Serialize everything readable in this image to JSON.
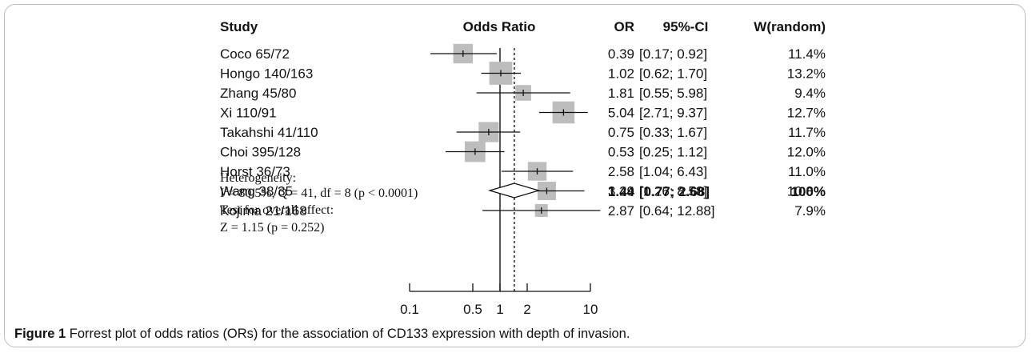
{
  "chart_data": {
    "type": "forest",
    "headers": {
      "study": "Study",
      "plot": "Odds Ratio",
      "or": "OR",
      "ci": "95%-CI",
      "weight": "W(random)"
    },
    "studies": [
      {
        "label": "Coco 65/72",
        "or": 0.39,
        "lo": 0.17,
        "hi": 0.92,
        "or_text": "0.39",
        "ci_text": "[0.17; 0.92]",
        "weight_text": "11.4%",
        "weight": 11.4
      },
      {
        "label": "Hongo 140/163",
        "or": 1.02,
        "lo": 0.62,
        "hi": 1.7,
        "or_text": "1.02",
        "ci_text": "[0.62; 1.70]",
        "weight_text": "13.2%",
        "weight": 13.2
      },
      {
        "label": "Zhang 45/80",
        "or": 1.81,
        "lo": 0.55,
        "hi": 5.98,
        "or_text": "1.81",
        "ci_text": "[0.55; 5.98]",
        "weight_text": "9.4%",
        "weight": 9.4
      },
      {
        "label": "Xi 110/91",
        "or": 5.04,
        "lo": 2.71,
        "hi": 9.37,
        "or_text": "5.04",
        "ci_text": "[2.71; 9.37]",
        "weight_text": "12.7%",
        "weight": 12.7
      },
      {
        "label": "Takahshi 41/110",
        "or": 0.75,
        "lo": 0.33,
        "hi": 1.67,
        "or_text": "0.75",
        "ci_text": "[0.33; 1.67]",
        "weight_text": "11.7%",
        "weight": 11.7
      },
      {
        "label": "Choi 395/128",
        "or": 0.53,
        "lo": 0.25,
        "hi": 1.12,
        "or_text": "0.53",
        "ci_text": "[0.25; 1.12]",
        "weight_text": "12.0%",
        "weight": 12.0
      },
      {
        "label": "Horst 36/73",
        "or": 2.58,
        "lo": 1.04,
        "hi": 6.43,
        "or_text": "2.58",
        "ci_text": "[1.04; 6.43]",
        "weight_text": "11.0%",
        "weight": 11.0
      },
      {
        "label": "Wang 38/35",
        "or": 3.29,
        "lo": 1.26,
        "hi": 8.58,
        "or_text": "3.29",
        "ci_text": "[1.26; 8.58]",
        "weight_text": "10.8%",
        "weight": 10.8
      },
      {
        "label": "Kojima 21/168",
        "or": 2.87,
        "lo": 0.64,
        "hi": 12.88,
        "or_text": "2.87",
        "ci_text": "[0.64; 12.88]",
        "weight_text": "7.9%",
        "weight": 7.9
      }
    ],
    "summary": {
      "or": 1.44,
      "lo": 0.77,
      "hi": 2.68,
      "or_text": "1.44",
      "ci_text": "[0.77; 2.68]",
      "weight_text": "100%"
    },
    "heterogeneity": {
      "title": "Heterogeneity:",
      "i2_symbol": "I",
      "i2_sup": "2",
      "stats": "= 80.5%, Q = 41, df = 8 (p < 0.0001)"
    },
    "overall_effect": {
      "title": "Test for overall effect:",
      "stats": "Z = 1.15  (p = 0.252)"
    },
    "x_axis": {
      "scale": "log",
      "ticks": [
        0.1,
        0.5,
        1,
        2,
        10
      ],
      "tick_labels": [
        "0.1",
        "0.5",
        "1",
        "2",
        "10"
      ]
    },
    "reference_line": 1,
    "summary_line": 1.44
  },
  "caption": {
    "label": "Figure 1",
    "text": " Forrest plot of odds ratios (ORs) for the association of CD133 expression with depth of invasion."
  }
}
